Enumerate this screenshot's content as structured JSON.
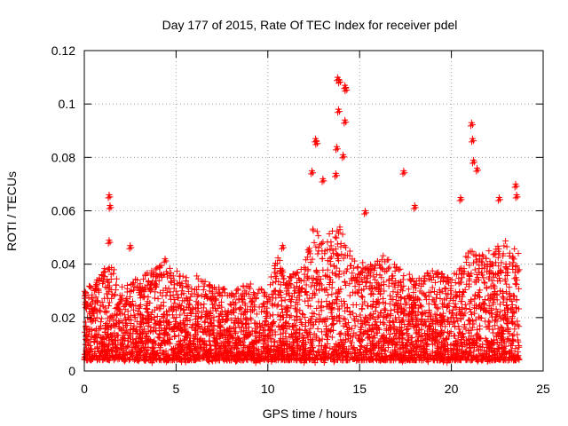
{
  "chart_data": {
    "type": "scatter",
    "title": "Day 177 of 2015, Rate Of TEC Index for receiver pdel",
    "xlabel": "GPS time / hours",
    "ylabel": "ROTI / TECUs",
    "xlim": [
      0,
      25
    ],
    "ylim": [
      0,
      0.12
    ],
    "x_ticks": [
      0,
      5,
      10,
      15,
      20,
      25
    ],
    "y_ticks": [
      0,
      0.02,
      0.04,
      0.06,
      0.08,
      0.1,
      0.12
    ],
    "x_tick_labels": [
      "0",
      "5",
      "10",
      "15",
      "20",
      "25"
    ],
    "y_tick_labels": [
      "0",
      "0.02",
      "0.04",
      "0.06",
      "0.08",
      "0.1",
      "0.12"
    ],
    "grid": true,
    "marker": "+",
    "color": "#ff0000",
    "series": [
      {
        "name": "ROTI",
        "x_range": [
          0,
          23.7
        ],
        "typical_y_range": [
          0.004,
          0.03
        ],
        "notable_points": [
          {
            "x": 1.35,
            "y": 0.066
          },
          {
            "x": 1.4,
            "y": 0.062
          },
          {
            "x": 1.35,
            "y": 0.049
          },
          {
            "x": 2.5,
            "y": 0.047
          },
          {
            "x": 4.4,
            "y": 0.042
          },
          {
            "x": 10.8,
            "y": 0.047
          },
          {
            "x": 12.4,
            "y": 0.075
          },
          {
            "x": 12.6,
            "y": 0.087
          },
          {
            "x": 12.65,
            "y": 0.086
          },
          {
            "x": 13.0,
            "y": 0.072
          },
          {
            "x": 13.8,
            "y": 0.11
          },
          {
            "x": 13.9,
            "y": 0.109
          },
          {
            "x": 13.85,
            "y": 0.098
          },
          {
            "x": 14.2,
            "y": 0.107
          },
          {
            "x": 14.25,
            "y": 0.106
          },
          {
            "x": 14.2,
            "y": 0.094
          },
          {
            "x": 14.1,
            "y": 0.081
          },
          {
            "x": 13.75,
            "y": 0.084
          },
          {
            "x": 13.7,
            "y": 0.074
          },
          {
            "x": 15.3,
            "y": 0.06
          },
          {
            "x": 17.4,
            "y": 0.075
          },
          {
            "x": 18.0,
            "y": 0.062
          },
          {
            "x": 20.5,
            "y": 0.065
          },
          {
            "x": 21.1,
            "y": 0.093
          },
          {
            "x": 21.15,
            "y": 0.087
          },
          {
            "x": 21.2,
            "y": 0.079
          },
          {
            "x": 21.4,
            "y": 0.076
          },
          {
            "x": 22.6,
            "y": 0.065
          },
          {
            "x": 23.5,
            "y": 0.07
          },
          {
            "x": 23.55,
            "y": 0.066
          }
        ]
      }
    ]
  }
}
